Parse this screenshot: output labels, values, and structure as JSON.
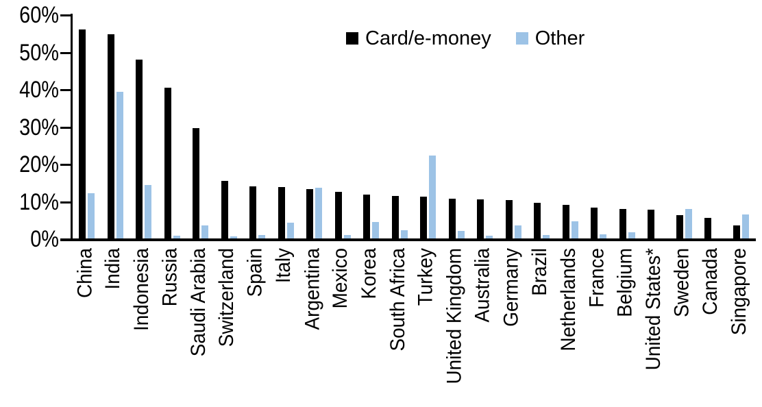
{
  "chart_data": {
    "type": "bar",
    "title": "",
    "categories": [
      "China",
      "India",
      "Indonesia",
      "Russia",
      "Saudi Arabia",
      "Switzerland",
      "Spain",
      "Italy",
      "Argentina",
      "Mexico",
      "Korea",
      "South Africa",
      "Turkey",
      "United Kingdom",
      "Australia",
      "Germany",
      "Brazil",
      "Netherlands",
      "France",
      "Belgium",
      "United States*",
      "Sweden",
      "Canada",
      "Singapore"
    ],
    "series": [
      {
        "name": "Card/e-money",
        "color": "#000000",
        "values": [
          56.4,
          55.1,
          48.3,
          40.7,
          29.9,
          15.7,
          14.3,
          14.1,
          13.5,
          12.9,
          12.2,
          11.8,
          11.6,
          11.1,
          10.8,
          10.6,
          10.0,
          9.3,
          8.7,
          8.2,
          8.0,
          6.6,
          5.9,
          3.9
        ]
      },
      {
        "name": "Other",
        "color": "#9DC3E6",
        "values": [
          12.4,
          39.7,
          14.6,
          1.1,
          3.9,
          0.9,
          1.2,
          4.6,
          13.9,
          1.3,
          4.7,
          2.5,
          22.6,
          2.3,
          1.1,
          3.9,
          1.2,
          4.9,
          1.5,
          2.1,
          0.4,
          8.2,
          0,
          6.8
        ]
      }
    ],
    "xlabel": "",
    "ylabel": "",
    "ylim": [
      0,
      60
    ],
    "ytick_labels": [
      "0%",
      "10%",
      "20%",
      "30%",
      "40%",
      "50%",
      "60%"
    ],
    "grid": false,
    "legend_position": "top-center"
  },
  "colors": {
    "card": "#000000",
    "other": "#9DC3E6",
    "axis": "#000000",
    "background": "#FFFFFF"
  }
}
